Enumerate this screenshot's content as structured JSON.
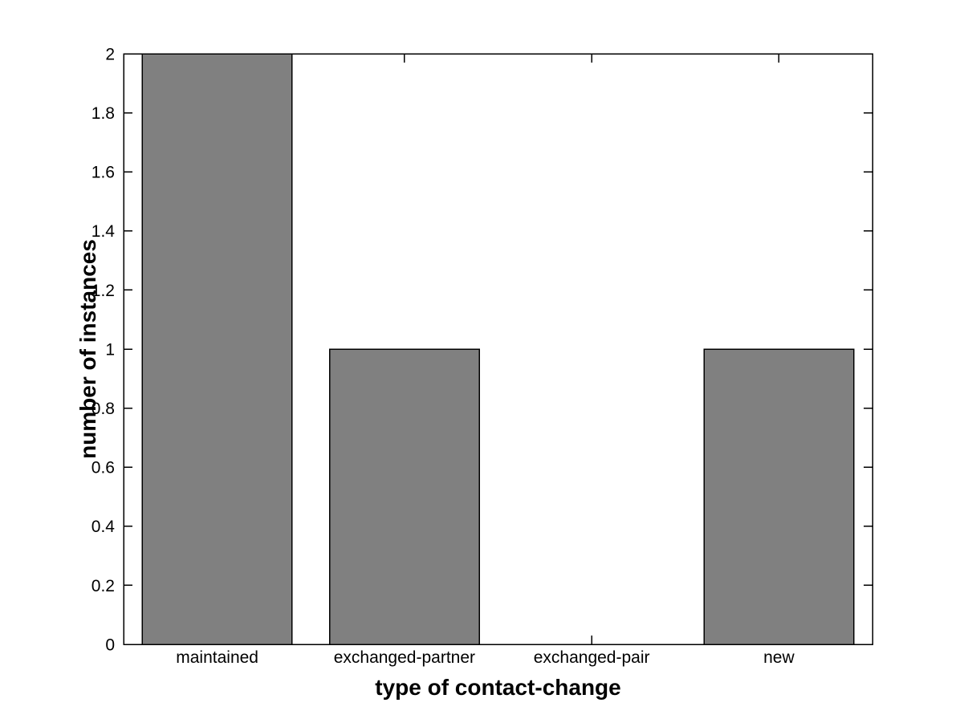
{
  "chart_data": {
    "type": "bar",
    "categories": [
      "maintained",
      "exchanged-partner",
      "exchanged-pair",
      "new"
    ],
    "values": [
      2,
      1,
      0,
      1
    ],
    "xlabel": "type of contact-change",
    "ylabel": "number of instances",
    "ylim": [
      0,
      2
    ],
    "yticks": [
      0,
      0.2,
      0.4,
      0.6,
      0.8,
      1,
      1.2,
      1.4,
      1.6,
      1.8,
      2
    ],
    "ytick_labels": [
      "0",
      "0.2",
      "0.4",
      "0.6",
      "0.8",
      "1",
      "1.2",
      "1.4",
      "1.6",
      "1.8",
      "2"
    ],
    "bar_width_fraction": 0.8,
    "grid": false,
    "legend": "none",
    "box": true,
    "tick_direction": "in",
    "colors": {
      "bar_fill": "#808080",
      "bar_edge": "#000000",
      "axis": "#000000",
      "text": "#000000",
      "background": "#ffffff"
    }
  }
}
